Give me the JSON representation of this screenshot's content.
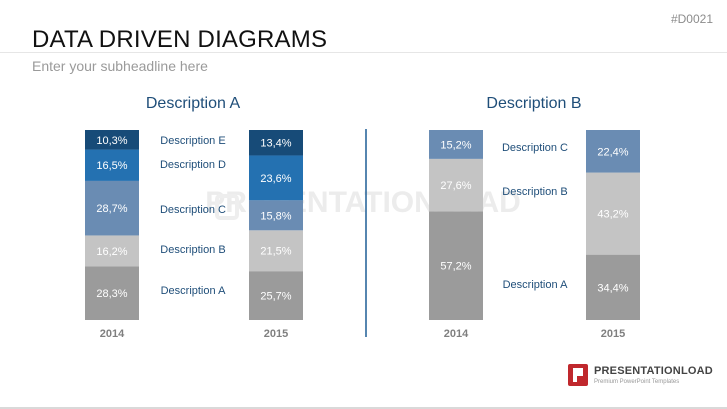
{
  "slide_id": "#D0021",
  "title": "DATA DRIVEN DIAGRAMS",
  "subtitle": "Enter your subheadline here",
  "watermark": "PRESENTATIONLOAD",
  "logo": {
    "name": "PRESENTATIONLOAD",
    "tagline": "Premium PowerPoint Templates",
    "color": "#c0282d"
  },
  "chart_data": [
    {
      "type": "bar",
      "stacked": true,
      "title": "Description A",
      "categories": [
        "2014",
        "2015"
      ],
      "series": [
        {
          "name": "Description A",
          "values": [
            28.3,
            25.7
          ],
          "labels": [
            "28,3%",
            "25,7%"
          ],
          "color": "#9b9b9b"
        },
        {
          "name": "Description B",
          "values": [
            16.2,
            21.5
          ],
          "labels": [
            "16,2%",
            "21,5%"
          ],
          "color": "#c4c4c4"
        },
        {
          "name": "Description C",
          "values": [
            28.7,
            15.8
          ],
          "labels": [
            "28,7%",
            "15,8%"
          ],
          "color": "#6a8cb3"
        },
        {
          "name": "Description D",
          "values": [
            16.5,
            23.6
          ],
          "labels": [
            "16,5%",
            "23,6%"
          ],
          "color": "#2471b1"
        },
        {
          "name": "Description E",
          "values": [
            10.3,
            13.4
          ],
          "labels": [
            "10,3%",
            "13,4%"
          ],
          "color": "#174b78"
        }
      ]
    },
    {
      "type": "bar",
      "stacked": true,
      "title": "Description B",
      "categories": [
        "2014",
        "2015"
      ],
      "series": [
        {
          "name": "Description A",
          "values": [
            57.2,
            34.4
          ],
          "labels": [
            "57,2%",
            "34,4%"
          ],
          "color": "#9b9b9b"
        },
        {
          "name": "Description B",
          "values": [
            27.6,
            43.2
          ],
          "labels": [
            "27,6%",
            "43,2%"
          ],
          "color": "#c4c4c4"
        },
        {
          "name": "Description C",
          "values": [
            15.2,
            22.4
          ],
          "labels": [
            "15,2%",
            "22,4%"
          ],
          "color": "#6a8cb3"
        }
      ]
    }
  ]
}
